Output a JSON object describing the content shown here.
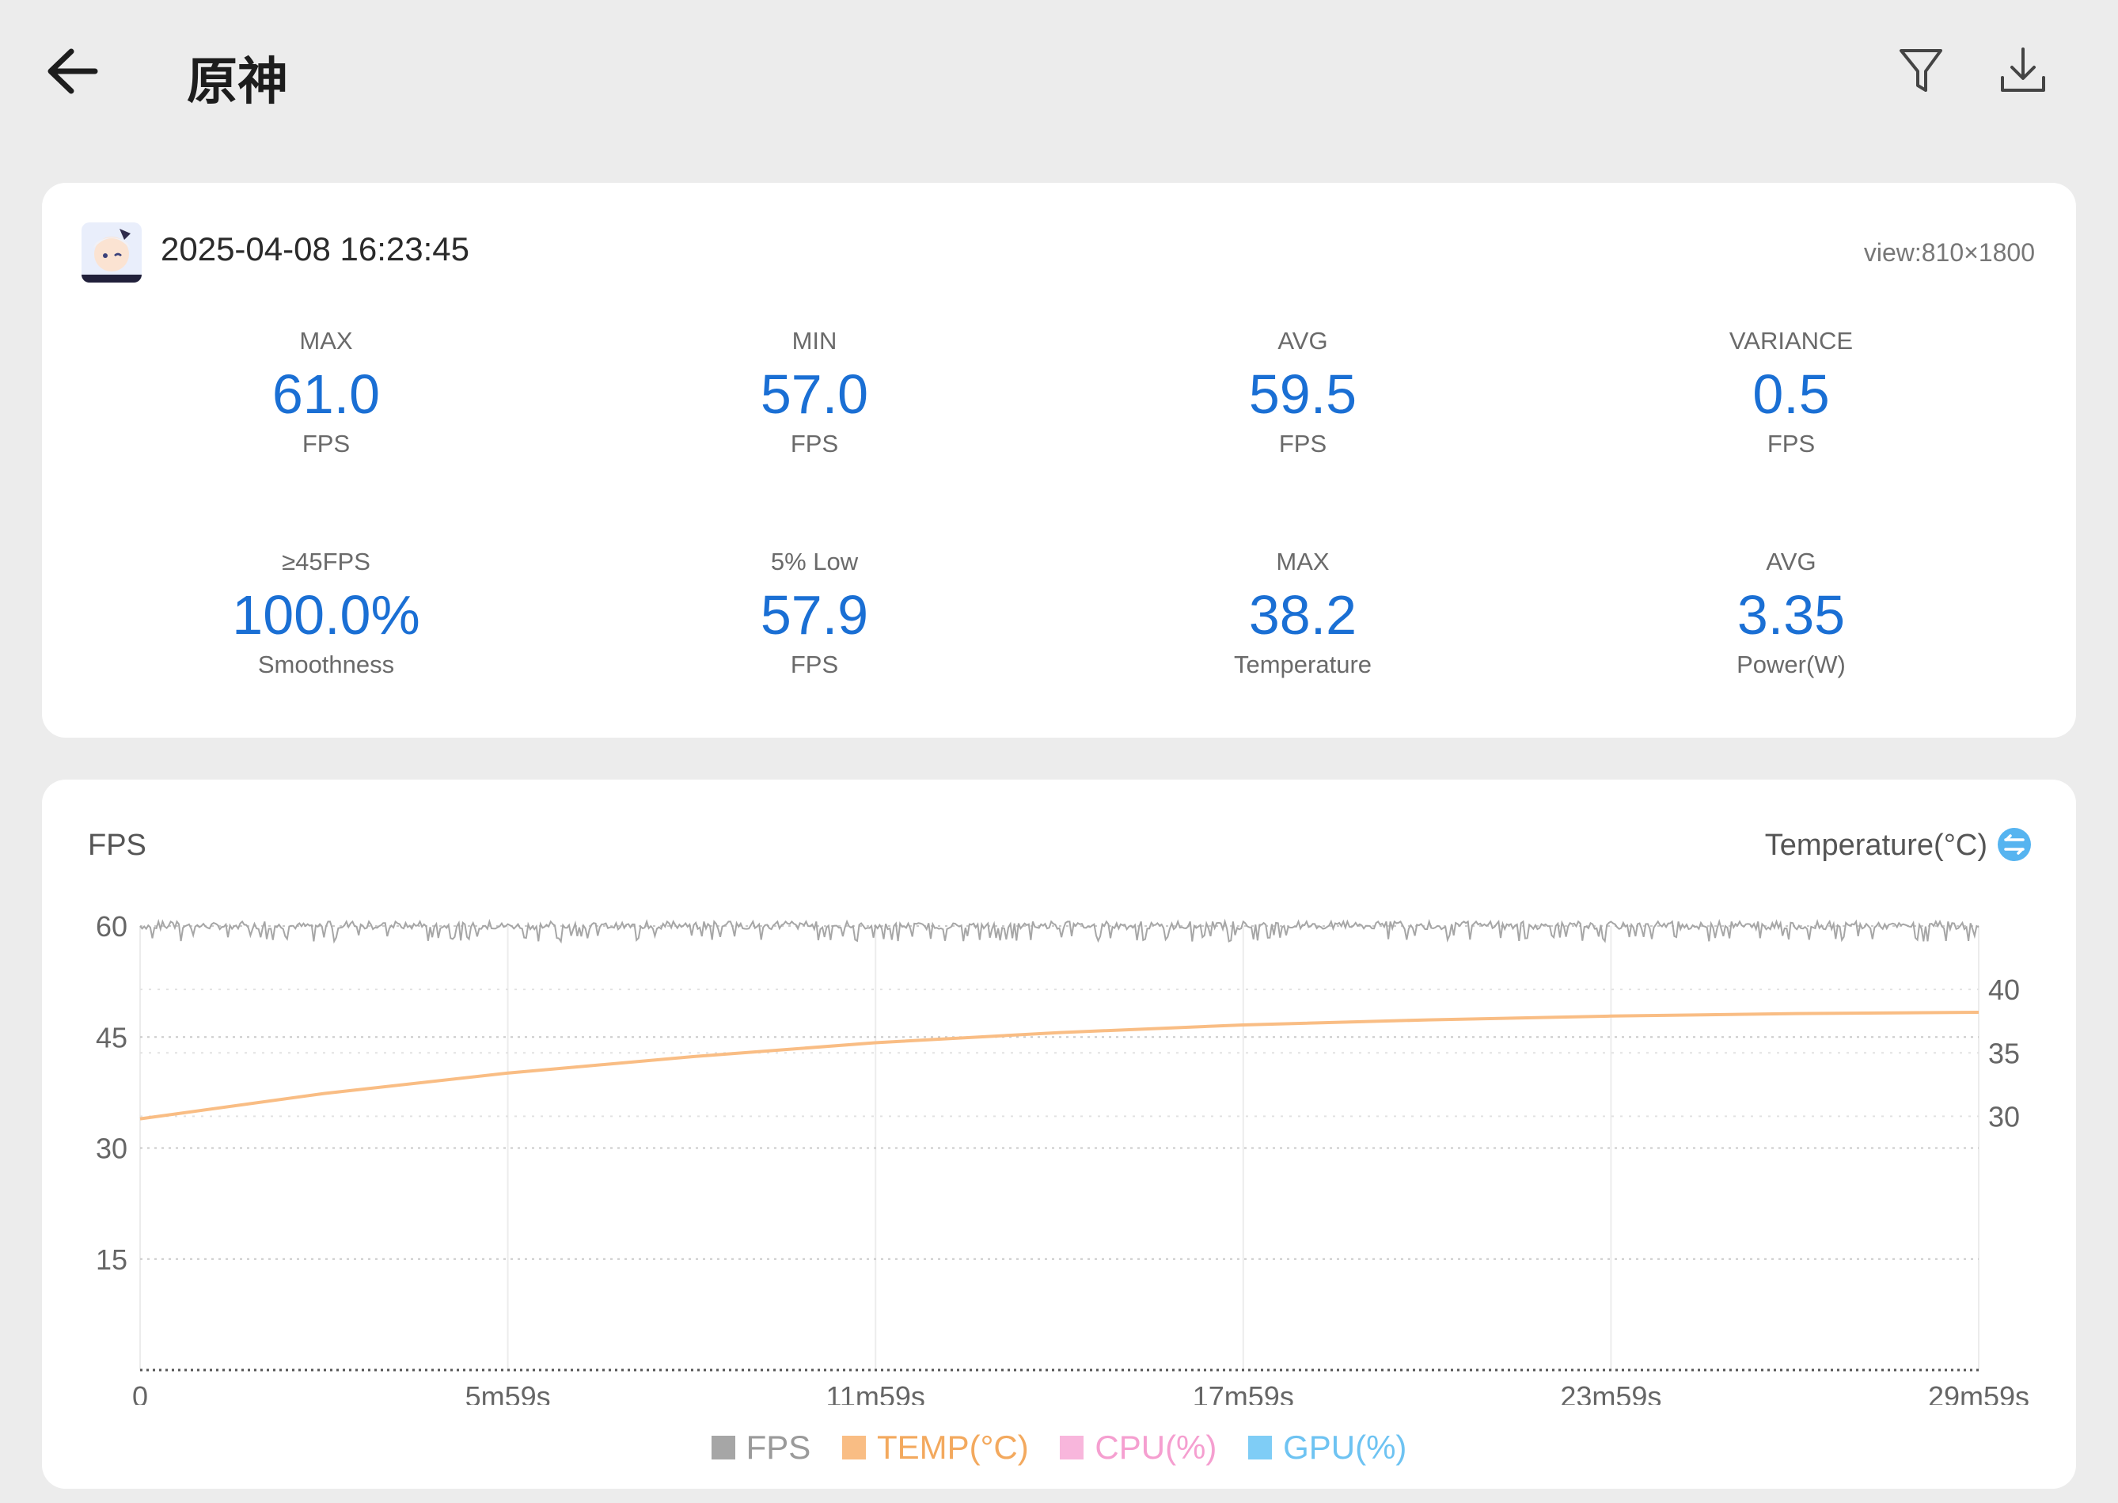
{
  "header": {
    "title": "原神"
  },
  "icons": {
    "back": "arrow-left-icon",
    "filter": "funnel-icon",
    "download": "download-icon",
    "swap": "swap-axis-icon"
  },
  "summary": {
    "timestamp": "2025-04-08 16:23:45",
    "view": "view:810×1800",
    "stats": [
      {
        "label": "MAX",
        "value": "61.0",
        "unit": "FPS"
      },
      {
        "label": "MIN",
        "value": "57.0",
        "unit": "FPS"
      },
      {
        "label": "AVG",
        "value": "59.5",
        "unit": "FPS"
      },
      {
        "label": "VARIANCE",
        "value": "0.5",
        "unit": "FPS"
      },
      {
        "label": "≥45FPS",
        "value": "100.0%",
        "unit": "Smoothness"
      },
      {
        "label": "5% Low",
        "value": "57.9",
        "unit": "FPS"
      },
      {
        "label": "MAX",
        "value": "38.2",
        "unit": "Temperature"
      },
      {
        "label": "AVG",
        "value": "3.35",
        "unit": "Power(W)"
      }
    ]
  },
  "colors": {
    "accent": "#1a6fd4",
    "fps": "#a6a6a6",
    "temp": "#f9bd84",
    "cpu": "#f8b6dc",
    "gpu": "#7fcdf6"
  },
  "chart_data": {
    "type": "line",
    "left_axis_title": "FPS",
    "right_axis_title": "Temperature(°C)",
    "ylim_left": [
      0,
      60
    ],
    "yticks_left": [
      "60",
      "45",
      "30",
      "15"
    ],
    "ylim_right": [
      10,
      45
    ],
    "yticks_right": [
      "40",
      "35",
      "30"
    ],
    "x_tick_labels": [
      "0",
      "5m59s",
      "11m59s",
      "17m59s",
      "23m59s",
      "29m59s"
    ],
    "x_range_seconds": [
      0,
      1799
    ],
    "legend": [
      "FPS",
      "TEMP(°C)",
      "CPU(%)",
      "GPU(%)"
    ],
    "series": [
      {
        "name": "FPS",
        "approx_value": 60,
        "range": [
          57,
          61
        ]
      },
      {
        "name": "TEMP(°C)",
        "x_seconds": [
          0,
          180,
          359,
          540,
          719,
          900,
          1079,
          1260,
          1439,
          1620,
          1799
        ],
        "values": [
          29.8,
          31.8,
          33.4,
          34.7,
          35.8,
          36.6,
          37.2,
          37.6,
          37.9,
          38.1,
          38.2
        ]
      }
    ]
  }
}
